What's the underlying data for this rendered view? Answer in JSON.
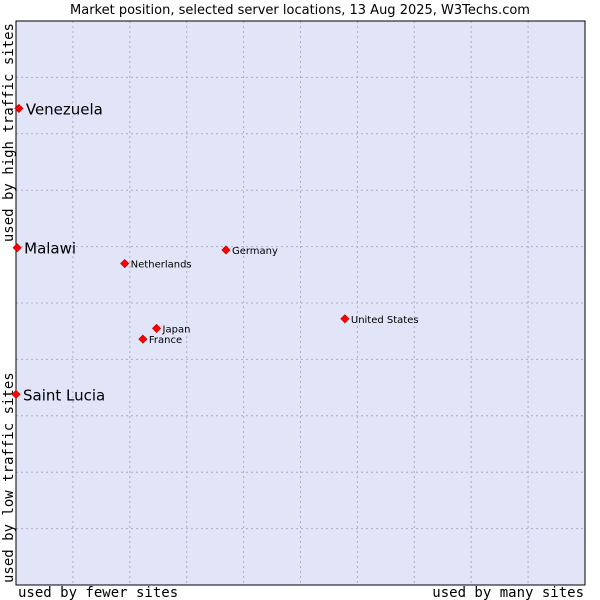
{
  "chart_data": {
    "type": "scatter",
    "title": "Market position, selected server locations, 13 Aug 2025, W3Techs.com",
    "xlabel_left": "used by fewer sites",
    "xlabel_right": "used by many sites",
    "ylabel_top": "used by high traffic sites",
    "ylabel_bottom": "used by low traffic sites",
    "xlim": [
      0,
      100
    ],
    "ylim": [
      0,
      100
    ],
    "grid": true,
    "grid_divisions_x": 10,
    "grid_divisions_y": 10,
    "colors": {
      "plot_background": "#e2e4f8",
      "grid": "#aaaacc",
      "border": "#000000",
      "marker": "#ff0000",
      "marker_outline": "#cc0000"
    },
    "points": [
      {
        "name": "Venezuela",
        "x": 0.5,
        "y": 84.5,
        "emphasis": true
      },
      {
        "name": "Malawi",
        "x": 0.2,
        "y": 59.8,
        "emphasis": true
      },
      {
        "name": "Saint Lucia",
        "x": 0.0,
        "y": 33.8,
        "emphasis": true
      },
      {
        "name": "Germany",
        "x": 36.9,
        "y": 59.4,
        "emphasis": false
      },
      {
        "name": "Netherlands",
        "x": 19.1,
        "y": 57.0,
        "emphasis": false
      },
      {
        "name": "United States",
        "x": 57.8,
        "y": 47.2,
        "emphasis": false
      },
      {
        "name": "Japan",
        "x": 24.7,
        "y": 45.5,
        "emphasis": false
      },
      {
        "name": "France",
        "x": 22.3,
        "y": 43.6,
        "emphasis": false
      }
    ]
  }
}
